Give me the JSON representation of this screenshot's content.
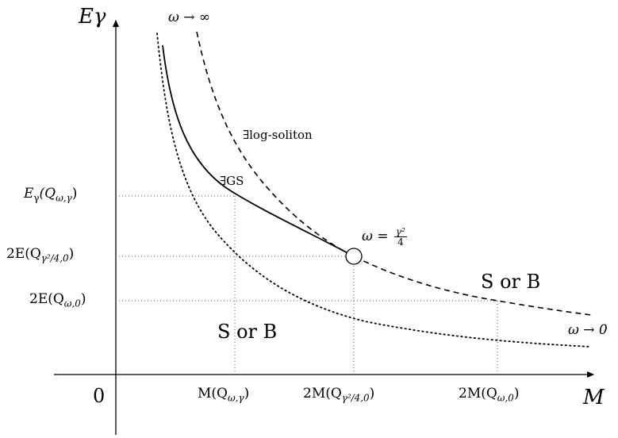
{
  "axes": {
    "y_label": "Eγ",
    "x_label": "M",
    "origin": "0"
  },
  "y_ticks": [
    {
      "name": "y-tick-egamma",
      "base": "E",
      "sub1": "γ",
      "arg": "(Q",
      "sub2": "ω,γ",
      "close": ")"
    },
    {
      "name": "y-tick-2e-gamma-sq",
      "base": "2E(Q",
      "sub2": "γ²/4,0",
      "close": ")"
    },
    {
      "name": "y-tick-2e-omega-0",
      "base": "2E(Q",
      "sub2": "ω,0",
      "close": ")"
    }
  ],
  "x_ticks": [
    {
      "name": "x-tick-m-omega-gamma",
      "base": "M(Q",
      "sub2": "ω,γ",
      "close": ")"
    },
    {
      "name": "x-tick-2m-gamma-sq",
      "base": "2M(Q",
      "sub2": "γ²/4,0",
      "close": ")"
    },
    {
      "name": "x-tick-2m-omega-0",
      "base": "2M(Q",
      "sub2": "ω,0",
      "close": ")"
    }
  ],
  "annotations": {
    "omega_inf": "ω → ∞",
    "omega_zero": "ω → 0",
    "log_soliton": "∃log-soliton",
    "gs": "∃GS",
    "omega_eq": "ω =",
    "omega_eq_num": "γ²",
    "omega_eq_den": "4",
    "region_upper": "S or B",
    "region_lower": "S or B"
  },
  "curves": [
    {
      "name": "solid-curve",
      "style": "solid"
    },
    {
      "name": "dashed-curve",
      "style": "dashed"
    },
    {
      "name": "dotted-curve",
      "style": "dotted"
    }
  ],
  "colors": {
    "ink": "#000000",
    "guide": "#555555"
  }
}
